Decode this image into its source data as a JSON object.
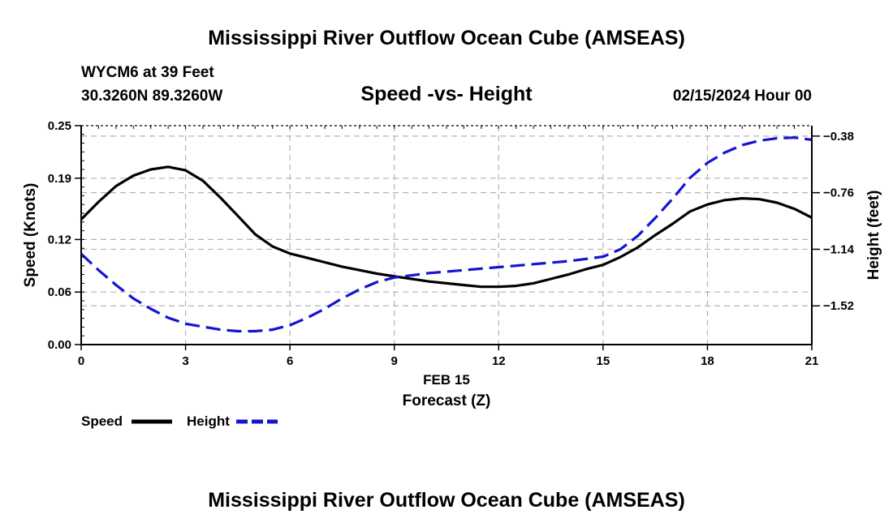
{
  "chart_data": {
    "type": "line",
    "title": "Mississippi River Outflow Ocean Cube (AMSEAS)",
    "subtitle": "Speed -vs- Height",
    "station": "WYCM6 at 39 Feet",
    "location": "30.3260N  89.3260W",
    "date_label": "02/15/2024 Hour 00",
    "xlabel": "Forecast (Z)",
    "xdate": "FEB 15",
    "ylabel_left": "Speed (Knots)",
    "ylabel_right": "Height (feet)",
    "xlim": [
      0,
      21
    ],
    "ylim_left": [
      0,
      0.25
    ],
    "ylim_right": [
      -1.78,
      -0.31
    ],
    "x_ticks": [
      "0",
      "3",
      "6",
      "9",
      "12",
      "15",
      "18",
      "21"
    ],
    "y_left_ticks": [
      "0.00",
      "0.06",
      "0.12",
      "0.19",
      "0.25"
    ],
    "y_right_ticks": [
      "-0.38",
      "-0.76",
      "-1.14",
      "-1.52"
    ],
    "grid": true,
    "x": [
      0,
      0.5,
      1,
      1.5,
      2,
      2.5,
      3,
      3.5,
      4,
      4.5,
      5,
      5.5,
      6,
      6.5,
      7,
      7.5,
      8,
      8.5,
      9,
      9.5,
      10,
      10.5,
      11,
      11.5,
      12,
      12.5,
      13,
      13.5,
      14,
      14.5,
      15,
      15.5,
      16,
      16.5,
      17,
      17.5,
      18,
      18.5,
      19,
      19.5,
      20,
      20.5,
      21
    ],
    "series": [
      {
        "name": "Speed",
        "axis": "left",
        "color": "#000000",
        "style": "solid",
        "values": [
          0.143,
          0.163,
          0.181,
          0.193,
          0.2,
          0.203,
          0.199,
          0.187,
          0.168,
          0.147,
          0.126,
          0.112,
          0.104,
          0.099,
          0.094,
          0.089,
          0.085,
          0.081,
          0.078,
          0.075,
          0.072,
          0.07,
          0.068,
          0.066,
          0.066,
          0.067,
          0.07,
          0.075,
          0.08,
          0.086,
          0.091,
          0.1,
          0.111,
          0.125,
          0.138,
          0.152,
          0.16,
          0.165,
          0.167,
          0.166,
          0.162,
          0.155,
          0.145
        ]
      },
      {
        "name": "Height",
        "axis": "right",
        "color": "#1414d2",
        "style": "dashed",
        "values": [
          -1.17,
          -1.28,
          -1.38,
          -1.47,
          -1.54,
          -1.6,
          -1.64,
          -1.66,
          -1.68,
          -1.69,
          -1.69,
          -1.68,
          -1.65,
          -1.6,
          -1.54,
          -1.47,
          -1.41,
          -1.36,
          -1.33,
          -1.315,
          -1.3,
          -1.29,
          -1.28,
          -1.27,
          -1.26,
          -1.25,
          -1.24,
          -1.23,
          -1.22,
          -1.205,
          -1.19,
          -1.14,
          -1.05,
          -0.93,
          -0.8,
          -0.66,
          -0.56,
          -0.49,
          -0.44,
          -0.41,
          -0.395,
          -0.39,
          -0.405
        ]
      }
    ],
    "legend": [
      {
        "label": "Speed",
        "color": "#000000",
        "style": "solid"
      },
      {
        "label": "Height",
        "color": "#1414d2",
        "style": "dashed"
      }
    ],
    "legend_position": "bottom-left"
  }
}
